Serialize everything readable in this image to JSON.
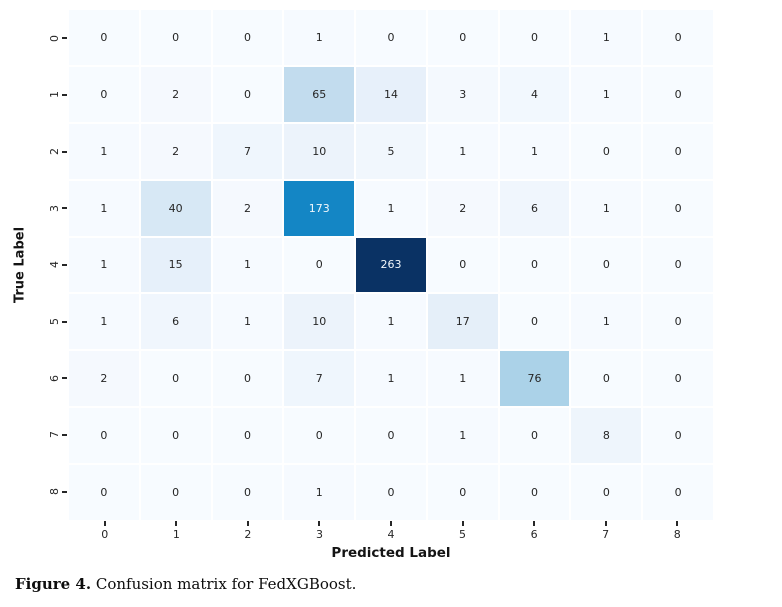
{
  "chart_data": {
    "type": "heatmap",
    "title": "",
    "xlabel": "Predicted Label",
    "ylabel": "True Label",
    "x_tick_labels": [
      "0",
      "1",
      "2",
      "3",
      "4",
      "5",
      "6",
      "7",
      "8"
    ],
    "y_tick_labels": [
      "0",
      "1",
      "2",
      "3",
      "4",
      "5",
      "6",
      "7",
      "8"
    ],
    "matrix": [
      [
        0,
        0,
        0,
        1,
        0,
        0,
        0,
        1,
        0
      ],
      [
        0,
        2,
        0,
        65,
        14,
        3,
        4,
        1,
        0
      ],
      [
        1,
        2,
        7,
        10,
        5,
        1,
        1,
        0,
        0
      ],
      [
        1,
        40,
        2,
        173,
        1,
        2,
        6,
        1,
        0
      ],
      [
        1,
        15,
        1,
        0,
        263,
        0,
        0,
        0,
        0
      ],
      [
        1,
        6,
        1,
        10,
        1,
        17,
        0,
        1,
        0
      ],
      [
        2,
        0,
        0,
        7,
        1,
        1,
        76,
        0,
        0
      ],
      [
        0,
        0,
        0,
        0,
        0,
        1,
        0,
        8,
        0
      ],
      [
        0,
        0,
        0,
        1,
        0,
        0,
        0,
        0,
        0
      ]
    ],
    "vmin": 0,
    "vmax": 263,
    "colormap": "Blues",
    "colormap_stops": [
      {
        "value": 0,
        "color": "#f7fbff"
      },
      {
        "value": 14,
        "color": "#e7f0fa"
      },
      {
        "value": 40,
        "color": "#d7e8f5"
      },
      {
        "value": 65,
        "color": "#c2dcee"
      },
      {
        "value": 76,
        "color": "#abd2e8"
      },
      {
        "value": 173,
        "color": "#1486c5"
      },
      {
        "value": 263,
        "color": "#0a3264"
      }
    ],
    "cell_gap_color": "#ffffff",
    "text_color_dark": "#262626",
    "text_color_light": "#f2f7fb",
    "light_text_threshold": 100,
    "grid": "off",
    "legend": "none"
  },
  "caption": {
    "label": "Figure 4.",
    "text": " Confusion matrix for FedXGBoost."
  }
}
